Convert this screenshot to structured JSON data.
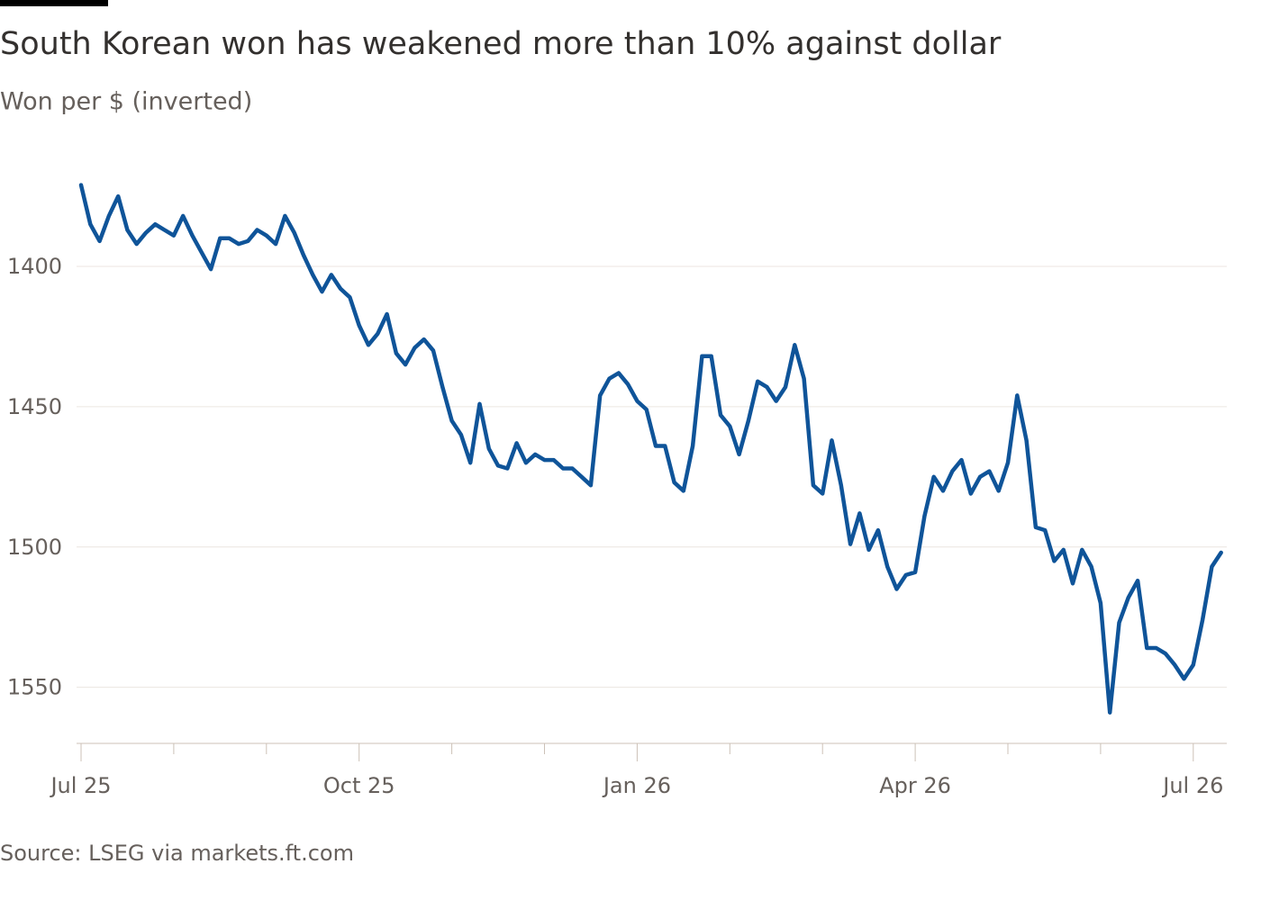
{
  "chart_data": {
    "type": "line",
    "title": "South Korean won has weakened more than 10% against dollar",
    "subtitle": "Won per $ (inverted)",
    "source": "Source: LSEG via markets.ft.com",
    "categories": [
      "Jul 25",
      null,
      null,
      null,
      null,
      null,
      null,
      null,
      null,
      null,
      null,
      null,
      null,
      null,
      null,
      null,
      null,
      null,
      null,
      null,
      null,
      null,
      null,
      null,
      null,
      null,
      null,
      null,
      null,
      null,
      "Oct 25",
      null,
      null,
      null,
      null,
      null,
      null,
      null,
      null,
      null,
      null,
      null,
      null,
      null,
      null,
      null,
      null,
      null,
      null,
      null,
      null,
      null,
      null,
      null,
      null,
      null,
      null,
      null,
      null,
      null,
      "Jan 26",
      null,
      null,
      null,
      null,
      null,
      null,
      null,
      null,
      null,
      null,
      null,
      null,
      null,
      null,
      null,
      null,
      null,
      null,
      null,
      null,
      null,
      null,
      null,
      null,
      null,
      null,
      null,
      null,
      null,
      "Apr 26",
      null,
      null,
      null,
      null,
      null,
      null,
      null,
      null,
      null,
      null,
      null,
      null,
      null,
      null,
      null,
      null,
      null,
      null,
      null,
      null,
      null,
      null,
      null,
      null,
      null,
      null,
      null,
      null,
      null,
      "Jul 26",
      null,
      null,
      null
    ],
    "values": [
      1371,
      1385,
      1391,
      1382,
      1375,
      1387,
      1392,
      1388,
      1385,
      1387,
      1389,
      1382,
      1389,
      1395,
      1401,
      1390,
      1390,
      1392,
      1391,
      1387,
      1389,
      1392,
      1382,
      1388,
      1396,
      1403,
      1409,
      1403,
      1408,
      1411,
      1421,
      1428,
      1424,
      1417,
      1431,
      1435,
      1429,
      1426,
      1430,
      1443,
      1455,
      1460,
      1470,
      1449,
      1465,
      1471,
      1472,
      1463,
      1470,
      1467,
      1469,
      1469,
      1472,
      1472,
      1475,
      1478,
      1446,
      1440,
      1438,
      1442,
      1448,
      1451,
      1464,
      1464,
      1477,
      1480,
      1464,
      1432,
      1432,
      1453,
      1457,
      1467,
      1455,
      1441,
      1443,
      1448,
      1443,
      1428,
      1440,
      1478,
      1481,
      1462,
      1478,
      1499,
      1488,
      1501,
      1494,
      1507,
      1515,
      1510,
      1509,
      1489,
      1475,
      1480,
      1473,
      1469,
      1481,
      1475,
      1473,
      1480,
      1470,
      1446,
      1462,
      1493,
      1494,
      1505,
      1501,
      1513,
      1501,
      1507,
      1520,
      1559,
      1527,
      1518,
      1512,
      1536,
      1536,
      1538,
      1542,
      1547,
      1542,
      1526,
      1507,
      1502
    ],
    "color": "#0f5499",
    "ylim": [
      1570,
      1366
    ],
    "yticks": [
      1400,
      1450,
      1500,
      1550
    ],
    "grid": true
  }
}
